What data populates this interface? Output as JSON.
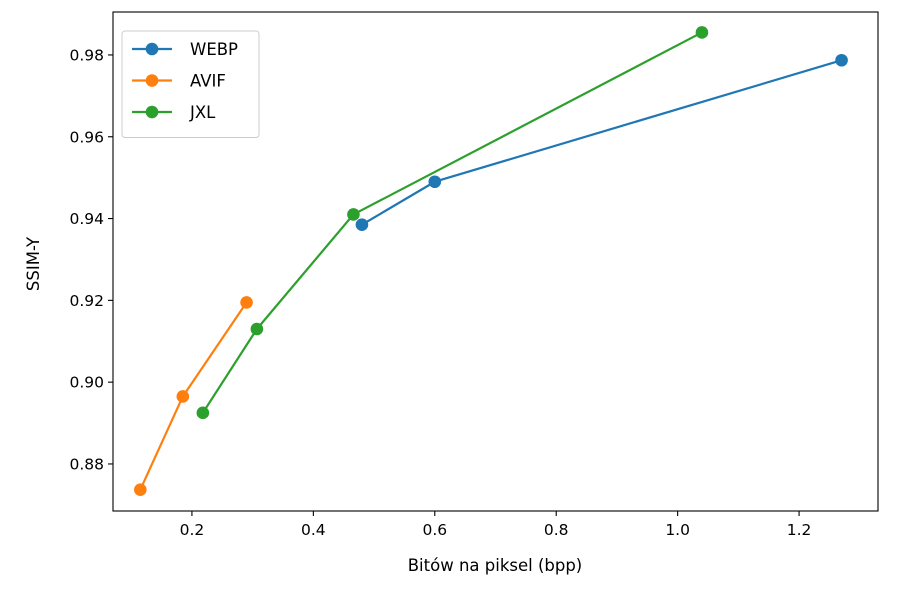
{
  "chart_data": {
    "type": "line",
    "title": "",
    "xlabel": "Bitów na piksel (bpp)",
    "ylabel": "SSIM-Y",
    "xlim": [
      0.07,
      1.33
    ],
    "ylim": [
      0.8685,
      0.9905
    ],
    "xticks": [
      0.2,
      0.4,
      0.6,
      0.8,
      1.0,
      1.2
    ],
    "xtick_labels": [
      "0.2",
      "0.4",
      "0.6",
      "0.8",
      "1.0",
      "1.2"
    ],
    "yticks": [
      0.88,
      0.9,
      0.92,
      0.94,
      0.96,
      0.98
    ],
    "ytick_labels": [
      "0.88",
      "0.90",
      "0.92",
      "0.94",
      "0.96",
      "0.98"
    ],
    "grid": false,
    "legend_position": "top-left",
    "series": [
      {
        "name": "WEBP",
        "color": "#1f77b4",
        "marker": "circle",
        "x": [
          0.48,
          0.6,
          1.27
        ],
        "y": [
          0.9385,
          0.949,
          0.9787
        ]
      },
      {
        "name": "AVIF",
        "color": "#ff7f0e",
        "marker": "circle",
        "x": [
          0.115,
          0.185,
          0.29
        ],
        "y": [
          0.8737,
          0.8965,
          0.9195
        ]
      },
      {
        "name": "JXL",
        "color": "#2ca02c",
        "marker": "circle",
        "x": [
          0.218,
          0.307,
          0.466,
          1.04
        ],
        "y": [
          0.8925,
          0.913,
          0.941,
          0.9855
        ]
      }
    ]
  }
}
